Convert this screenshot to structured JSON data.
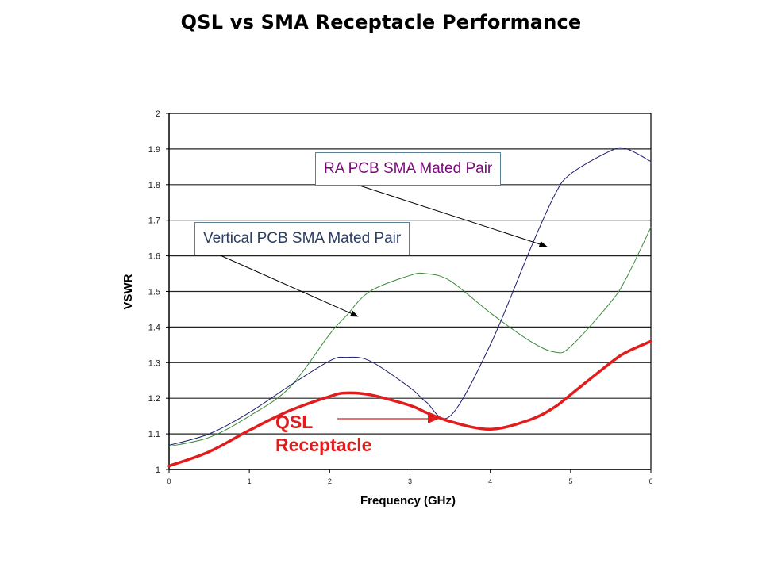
{
  "chart_data": {
    "type": "line",
    "title": "QSL vs SMA Receptacle Performance",
    "xlabel": "Frequency (GHz)",
    "ylabel": "VSWR",
    "xlim": [
      0,
      6
    ],
    "ylim": [
      1,
      2
    ],
    "xticks": [
      "0",
      "1",
      "2",
      "3",
      "4",
      "5",
      "6"
    ],
    "yticks": [
      "1",
      "1.1",
      "1.2",
      "1.3",
      "1.4",
      "1.5",
      "1.6",
      "1.7",
      "1.8",
      "1.9",
      "2"
    ],
    "grid": "horizontal",
    "x": [
      0,
      0.5,
      1.0,
      1.5,
      2.0,
      2.2,
      2.5,
      3.0,
      3.2,
      3.5,
      4.0,
      4.5,
      4.8,
      5.0,
      5.5,
      5.7,
      6.0
    ],
    "series": [
      {
        "name": "Vertical PCB SMA Mated Pair",
        "color": "#3a8a3a",
        "values": [
          1.065,
          1.09,
          1.15,
          1.23,
          1.38,
          1.43,
          1.5,
          1.545,
          1.55,
          1.53,
          1.44,
          1.36,
          1.33,
          1.345,
          1.47,
          1.54,
          1.68
        ]
      },
      {
        "name": "RA PCB SMA Mated Pair",
        "color": "#1c1c6e",
        "values": [
          1.068,
          1.1,
          1.16,
          1.235,
          1.305,
          1.315,
          1.305,
          1.23,
          1.19,
          1.15,
          1.35,
          1.62,
          1.77,
          1.83,
          1.895,
          1.9,
          1.865
        ]
      },
      {
        "name": "QSL Receptacle",
        "color": "#e21c1c",
        "values": [
          1.01,
          1.05,
          1.11,
          1.165,
          1.205,
          1.215,
          1.21,
          1.18,
          1.16,
          1.135,
          1.113,
          1.14,
          1.175,
          1.21,
          1.3,
          1.33,
          1.36
        ]
      }
    ],
    "annotations": [
      {
        "text": "RA PCB SMA Mated Pair",
        "points_to_series": "RA PCB SMA Mated Pair",
        "arrow_target": [
          4.7,
          1.62
        ]
      },
      {
        "text": "Vertical PCB SMA Mated Pair",
        "points_to_series": "Vertical PCB SMA Mated Pair",
        "arrow_target": [
          2.35,
          1.45
        ]
      },
      {
        "text_lines": [
          "QSL",
          "Receptacle"
        ],
        "points_to_series": "QSL Receptacle",
        "arrow_target": [
          3.35,
          1.16
        ]
      }
    ]
  }
}
